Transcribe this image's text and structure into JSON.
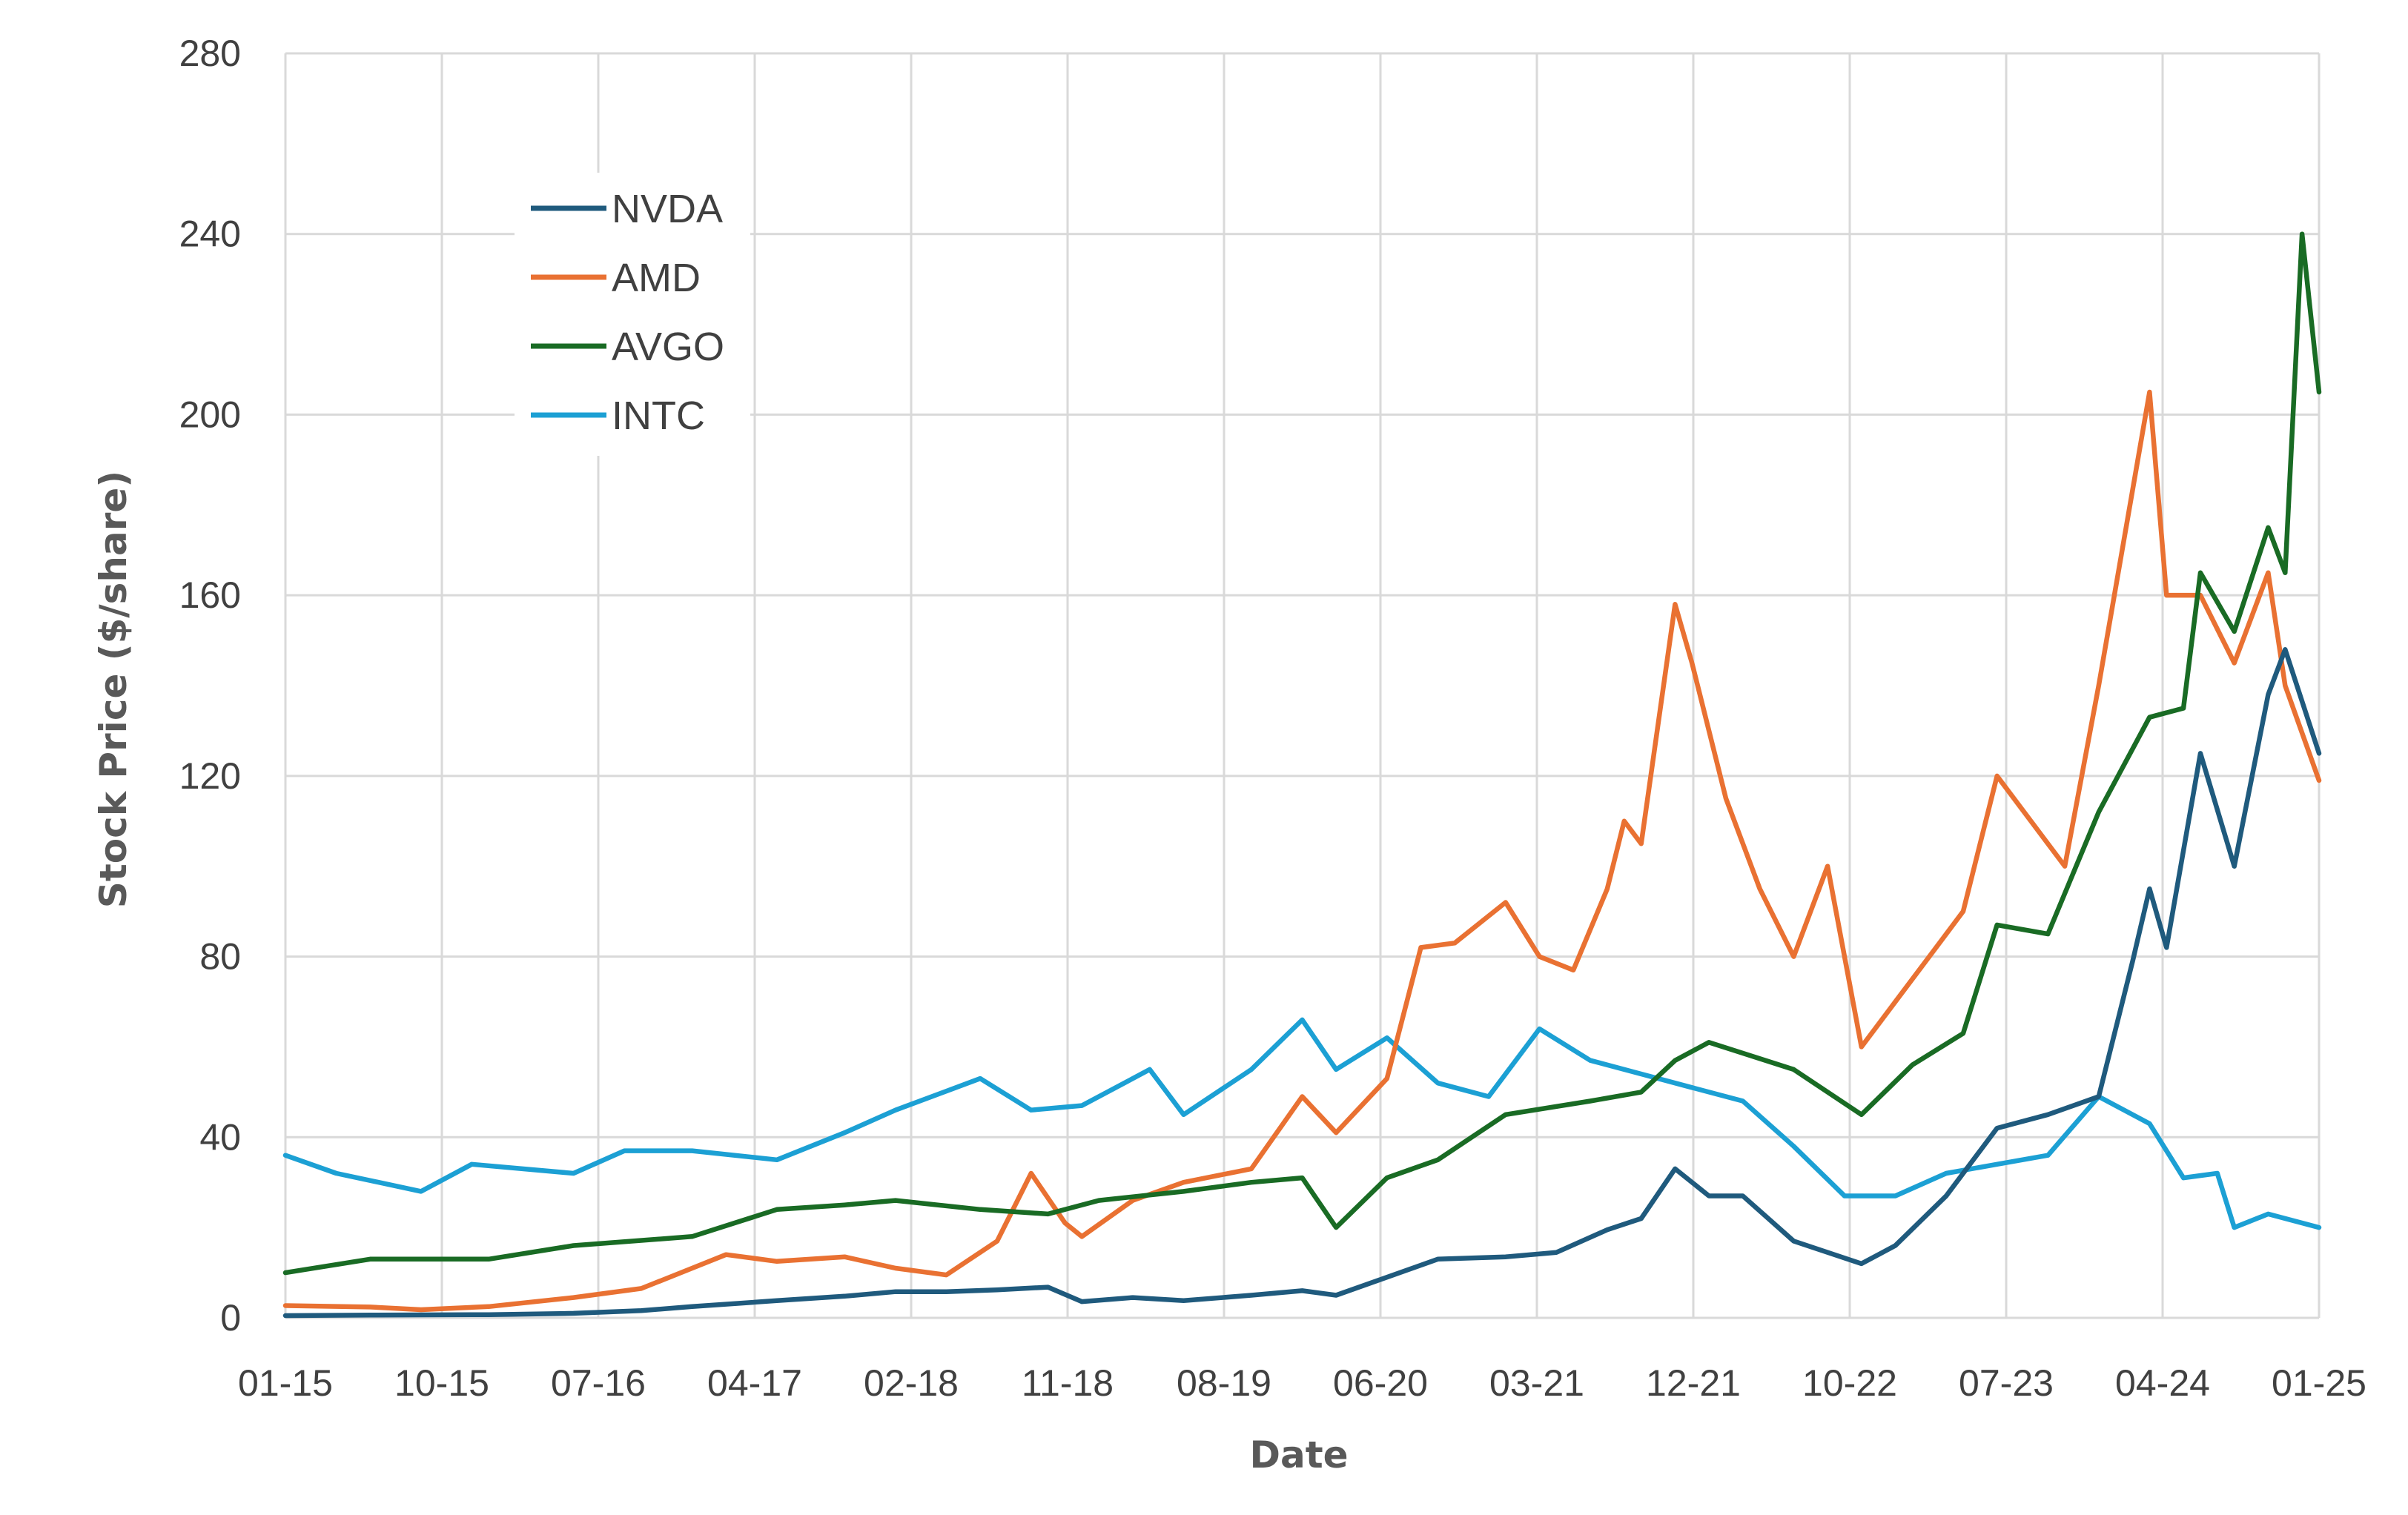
{
  "chart_data": {
    "type": "line",
    "title": "",
    "xlabel": "Date",
    "ylabel": "Stock Price ($/share)",
    "ylim": [
      0,
      280
    ],
    "y_ticks": [
      0,
      40,
      80,
      120,
      160,
      200,
      240,
      280
    ],
    "x_tick_labels": [
      "01-15",
      "10-15",
      "07-16",
      "04-17",
      "02-18",
      "11-18",
      "08-19",
      "06-20",
      "03-21",
      "12-21",
      "10-22",
      "07-23",
      "04-24",
      "01-25"
    ],
    "x_range": [
      "2015-01",
      "2025-01"
    ],
    "grid": true,
    "legend_position": "top-left",
    "series": [
      {
        "name": "NVDA",
        "color": "#1f5a7d",
        "points": [
          [
            "2015-01",
            0.5
          ],
          [
            "2015-06",
            0.6
          ],
          [
            "2016-01",
            0.7
          ],
          [
            "2016-06",
            1.0
          ],
          [
            "2016-10",
            1.6
          ],
          [
            "2017-01",
            2.5
          ],
          [
            "2017-06",
            3.8
          ],
          [
            "2017-10",
            4.8
          ],
          [
            "2018-01",
            5.8
          ],
          [
            "2018-04",
            5.8
          ],
          [
            "2018-07",
            6.2
          ],
          [
            "2018-10",
            6.8
          ],
          [
            "2018-12",
            3.6
          ],
          [
            "2019-03",
            4.5
          ],
          [
            "2019-06",
            3.8
          ],
          [
            "2019-10",
            5.0
          ],
          [
            "2020-01",
            6.0
          ],
          [
            "2020-03",
            5.0
          ],
          [
            "2020-06",
            9.0
          ],
          [
            "2020-09",
            13.0
          ],
          [
            "2021-01",
            13.5
          ],
          [
            "2021-04",
            14.5
          ],
          [
            "2021-07",
            19.5
          ],
          [
            "2021-09",
            22.0
          ],
          [
            "2021-11",
            33.0
          ],
          [
            "2022-01",
            27.0
          ],
          [
            "2022-03",
            27.0
          ],
          [
            "2022-06",
            17.0
          ],
          [
            "2022-10",
            12.0
          ],
          [
            "2022-12",
            16.0
          ],
          [
            "2023-03",
            27.0
          ],
          [
            "2023-06",
            42.0
          ],
          [
            "2023-09",
            45.0
          ],
          [
            "2023-12",
            49.0
          ],
          [
            "2024-02",
            79.0
          ],
          [
            "2024-03",
            95.0
          ],
          [
            "2024-04",
            82.0
          ],
          [
            "2024-06",
            125.0
          ],
          [
            "2024-08",
            100.0
          ],
          [
            "2024-10",
            138.0
          ],
          [
            "2024-11",
            148.0
          ],
          [
            "2025-01",
            125.0
          ]
        ]
      },
      {
        "name": "AMD",
        "color": "#e97132",
        "points": [
          [
            "2015-01",
            2.7
          ],
          [
            "2015-06",
            2.4
          ],
          [
            "2015-09",
            1.8
          ],
          [
            "2016-01",
            2.5
          ],
          [
            "2016-06",
            4.5
          ],
          [
            "2016-10",
            6.5
          ],
          [
            "2017-01",
            11.0
          ],
          [
            "2017-03",
            14.0
          ],
          [
            "2017-06",
            12.5
          ],
          [
            "2017-10",
            13.5
          ],
          [
            "2018-01",
            11.0
          ],
          [
            "2018-04",
            9.5
          ],
          [
            "2018-07",
            17.0
          ],
          [
            "2018-09",
            32.0
          ],
          [
            "2018-11",
            21.0
          ],
          [
            "2018-12",
            18.0
          ],
          [
            "2019-03",
            26.0
          ],
          [
            "2019-06",
            30.0
          ],
          [
            "2019-10",
            33.0
          ],
          [
            "2020-01",
            49.0
          ],
          [
            "2020-03",
            41.0
          ],
          [
            "2020-06",
            53.0
          ],
          [
            "2020-08",
            82.0
          ],
          [
            "2020-10",
            83.0
          ],
          [
            "2021-01",
            92.0
          ],
          [
            "2021-03",
            80.0
          ],
          [
            "2021-05",
            77.0
          ],
          [
            "2021-07",
            95.0
          ],
          [
            "2021-08",
            110.0
          ],
          [
            "2021-09",
            105.0
          ],
          [
            "2021-11",
            158.0
          ],
          [
            "2021-12",
            145.0
          ],
          [
            "2022-02",
            115.0
          ],
          [
            "2022-04",
            95.0
          ],
          [
            "2022-06",
            80.0
          ],
          [
            "2022-08",
            100.0
          ],
          [
            "2022-10",
            60.0
          ],
          [
            "2022-12",
            70.0
          ],
          [
            "2023-02",
            80.0
          ],
          [
            "2023-04",
            90.0
          ],
          [
            "2023-06",
            120.0
          ],
          [
            "2023-08",
            110.0
          ],
          [
            "2023-10",
            100.0
          ],
          [
            "2023-12",
            140.0
          ],
          [
            "2024-03",
            205.0
          ],
          [
            "2024-04",
            160.0
          ],
          [
            "2024-06",
            160.0
          ],
          [
            "2024-08",
            145.0
          ],
          [
            "2024-10",
            165.0
          ],
          [
            "2024-11",
            140.0
          ],
          [
            "2025-01",
            119.0
          ]
        ]
      },
      {
        "name": "AVGO",
        "color": "#196b24",
        "points": [
          [
            "2015-01",
            10.0
          ],
          [
            "2015-06",
            13.0
          ],
          [
            "2016-01",
            13.0
          ],
          [
            "2016-06",
            16.0
          ],
          [
            "2017-01",
            18.0
          ],
          [
            "2017-06",
            24.0
          ],
          [
            "2017-10",
            25.0
          ],
          [
            "2018-01",
            26.0
          ],
          [
            "2018-06",
            24.0
          ],
          [
            "2018-10",
            23.0
          ],
          [
            "2019-01",
            26.0
          ],
          [
            "2019-06",
            28.0
          ],
          [
            "2019-10",
            30.0
          ],
          [
            "2020-01",
            31.0
          ],
          [
            "2020-03",
            20.0
          ],
          [
            "2020-06",
            31.0
          ],
          [
            "2020-09",
            35.0
          ],
          [
            "2021-01",
            45.0
          ],
          [
            "2021-06",
            48.0
          ],
          [
            "2021-09",
            50.0
          ],
          [
            "2021-11",
            57.0
          ],
          [
            "2022-01",
            61.0
          ],
          [
            "2022-06",
            55.0
          ],
          [
            "2022-10",
            45.0
          ],
          [
            "2023-01",
            56.0
          ],
          [
            "2023-04",
            63.0
          ],
          [
            "2023-06",
            87.0
          ],
          [
            "2023-09",
            85.0
          ],
          [
            "2023-12",
            112.0
          ],
          [
            "2024-03",
            133.0
          ],
          [
            "2024-05",
            135.0
          ],
          [
            "2024-06",
            165.0
          ],
          [
            "2024-08",
            152.0
          ],
          [
            "2024-10",
            175.0
          ],
          [
            "2024-11",
            165.0
          ],
          [
            "2024-12",
            240.0
          ],
          [
            "2025-01",
            205.0
          ]
        ]
      },
      {
        "name": "INTC",
        "color": "#1ca0d4",
        "points": [
          [
            "2015-01",
            36.0
          ],
          [
            "2015-04",
            32.0
          ],
          [
            "2015-09",
            28.0
          ],
          [
            "2015-12",
            34.0
          ],
          [
            "2016-06",
            32.0
          ],
          [
            "2016-09",
            37.0
          ],
          [
            "2017-01",
            37.0
          ],
          [
            "2017-06",
            35.0
          ],
          [
            "2017-10",
            41.0
          ],
          [
            "2018-01",
            46.0
          ],
          [
            "2018-06",
            53.0
          ],
          [
            "2018-09",
            46.0
          ],
          [
            "2018-12",
            47.0
          ],
          [
            "2019-04",
            55.0
          ],
          [
            "2019-06",
            45.0
          ],
          [
            "2019-10",
            55.0
          ],
          [
            "2020-01",
            66.0
          ],
          [
            "2020-03",
            55.0
          ],
          [
            "2020-06",
            62.0
          ],
          [
            "2020-09",
            52.0
          ],
          [
            "2020-12",
            49.0
          ],
          [
            "2021-03",
            64.0
          ],
          [
            "2021-06",
            57.0
          ],
          [
            "2021-09",
            54.0
          ],
          [
            "2021-12",
            51.0
          ],
          [
            "2022-03",
            48.0
          ],
          [
            "2022-06",
            38.0
          ],
          [
            "2022-09",
            27.0
          ],
          [
            "2022-12",
            27.0
          ],
          [
            "2023-03",
            32.0
          ],
          [
            "2023-06",
            34.0
          ],
          [
            "2023-09",
            36.0
          ],
          [
            "2023-12",
            49.0
          ],
          [
            "2024-03",
            43.0
          ],
          [
            "2024-05",
            31.0
          ],
          [
            "2024-07",
            32.0
          ],
          [
            "2024-08",
            20.0
          ],
          [
            "2024-10",
            23.0
          ],
          [
            "2025-01",
            20.0
          ]
        ]
      }
    ]
  }
}
